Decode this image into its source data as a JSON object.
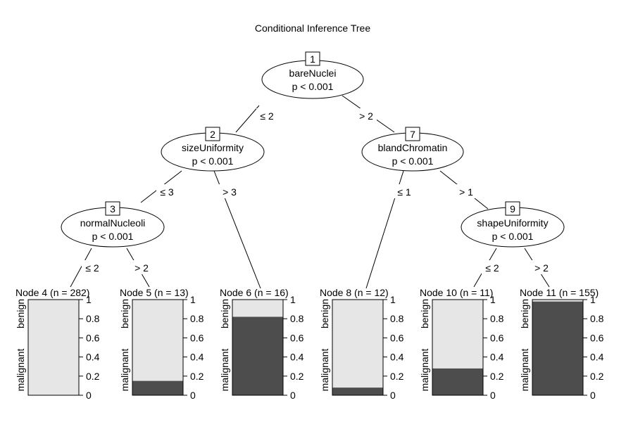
{
  "title": "Conditional Inference Tree",
  "inner_nodes": {
    "n1": {
      "id": "1",
      "variable": "bareNuclei",
      "pvalue": "p < 0.001"
    },
    "n2": {
      "id": "2",
      "variable": "sizeUniformity",
      "pvalue": "p < 0.001"
    },
    "n3": {
      "id": "3",
      "variable": "normalNucleoli",
      "pvalue": "p < 0.001"
    },
    "n7": {
      "id": "7",
      "variable": "blandChromatin",
      "pvalue": "p < 0.001"
    },
    "n9": {
      "id": "9",
      "variable": "shapeUniformity",
      "pvalue": "p < 0.001"
    }
  },
  "edges": {
    "e1_2": "≤ 2",
    "e1_7": "> 2",
    "e2_3": "≤ 3",
    "e2_6": "> 3",
    "e3_4": "≤ 2",
    "e3_5": "> 2",
    "e7_8": "≤ 1",
    "e7_9": "> 1",
    "e9_10": "≤ 2",
    "e9_11": "> 2"
  },
  "leaves": {
    "n4": {
      "label": "Node 4 (n = 282)",
      "malignant": 0.0
    },
    "n5": {
      "label": "Node 5 (n = 13)",
      "malignant": 0.15
    },
    "n6": {
      "label": "Node 6 (n = 16)",
      "malignant": 0.82
    },
    "n8": {
      "label": "Node 8 (n = 12)",
      "malignant": 0.08
    },
    "n10": {
      "label": "Node 10 (n = 11)",
      "malignant": 0.28
    },
    "n11": {
      "label": "Node 11 (n = 155)",
      "malignant": 0.98
    }
  },
  "class_labels": {
    "top": "benign",
    "bottom": "malignant"
  },
  "axis_ticks": [
    "0",
    "0.2",
    "0.4",
    "0.6",
    "0.8",
    "1"
  ],
  "colors": {
    "benign": "#e6e6e6",
    "malignant": "#4d4d4d"
  }
}
